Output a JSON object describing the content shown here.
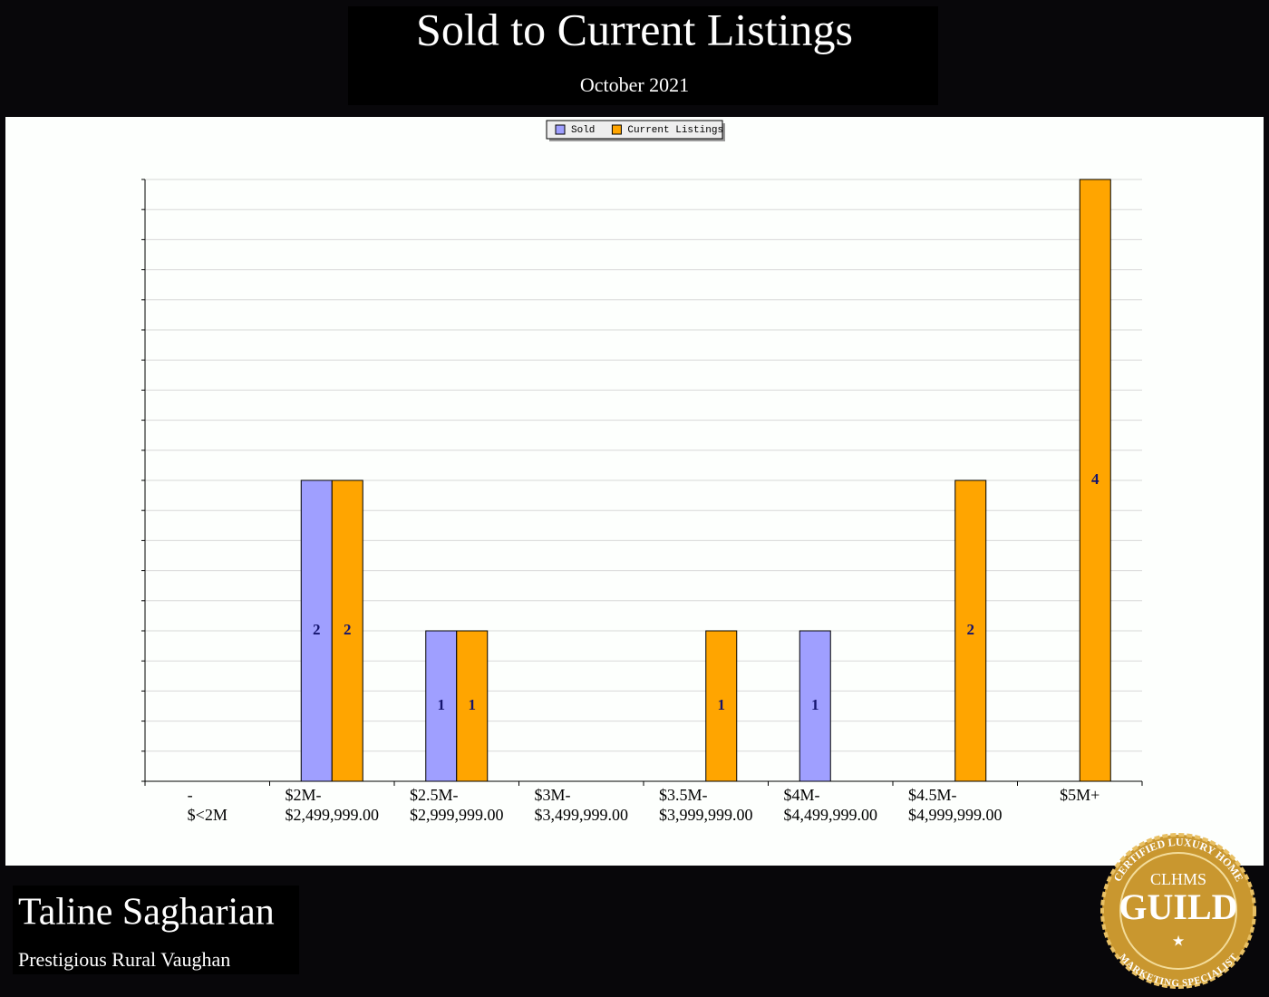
{
  "header": {
    "title": "Sold to Current Listings",
    "subtitle": "October 2021"
  },
  "chart_data": {
    "type": "bar",
    "categories": [
      [
        "-",
        "$<2M"
      ],
      [
        "$2M-",
        "$2,499,999.00"
      ],
      [
        "$2.5M-",
        "$2,999,999.00"
      ],
      [
        "$3M-",
        "$3,499,999.00"
      ],
      [
        "$3.5M-",
        "$3,999,999.00"
      ],
      [
        "$4M-",
        "$4,499,999.00"
      ],
      [
        "$4.5M-",
        "$4,999,999.00"
      ],
      [
        "$5M+"
      ]
    ],
    "series": [
      {
        "name": "Sold",
        "color": "#9f9fff",
        "values": [
          0,
          2,
          1,
          0,
          0,
          1,
          0,
          0
        ]
      },
      {
        "name": "Current Listings",
        "color": "#ffa500",
        "values": [
          0,
          2,
          1,
          0,
          1,
          0,
          2,
          4
        ]
      }
    ],
    "ylim": [
      0,
      4
    ],
    "yticks": [
      0,
      0.2,
      0.4,
      0.6,
      0.8,
      1,
      1.2,
      1.4,
      1.6,
      1.8,
      2,
      2.2,
      2.4,
      2.6,
      2.8,
      3,
      3.2,
      3.4,
      3.6,
      3.8,
      4
    ],
    "grid": true,
    "legend": "top"
  },
  "footer": {
    "name": "Taline Sagharian",
    "subtitle": "Prestigious Rural Vaughan"
  },
  "badge": {
    "top": "CERTIFIED LUXURY HOME",
    "acronym": "CLHMS",
    "word": "GUILD",
    "bottom": "MARKETING SPECIALIST"
  }
}
